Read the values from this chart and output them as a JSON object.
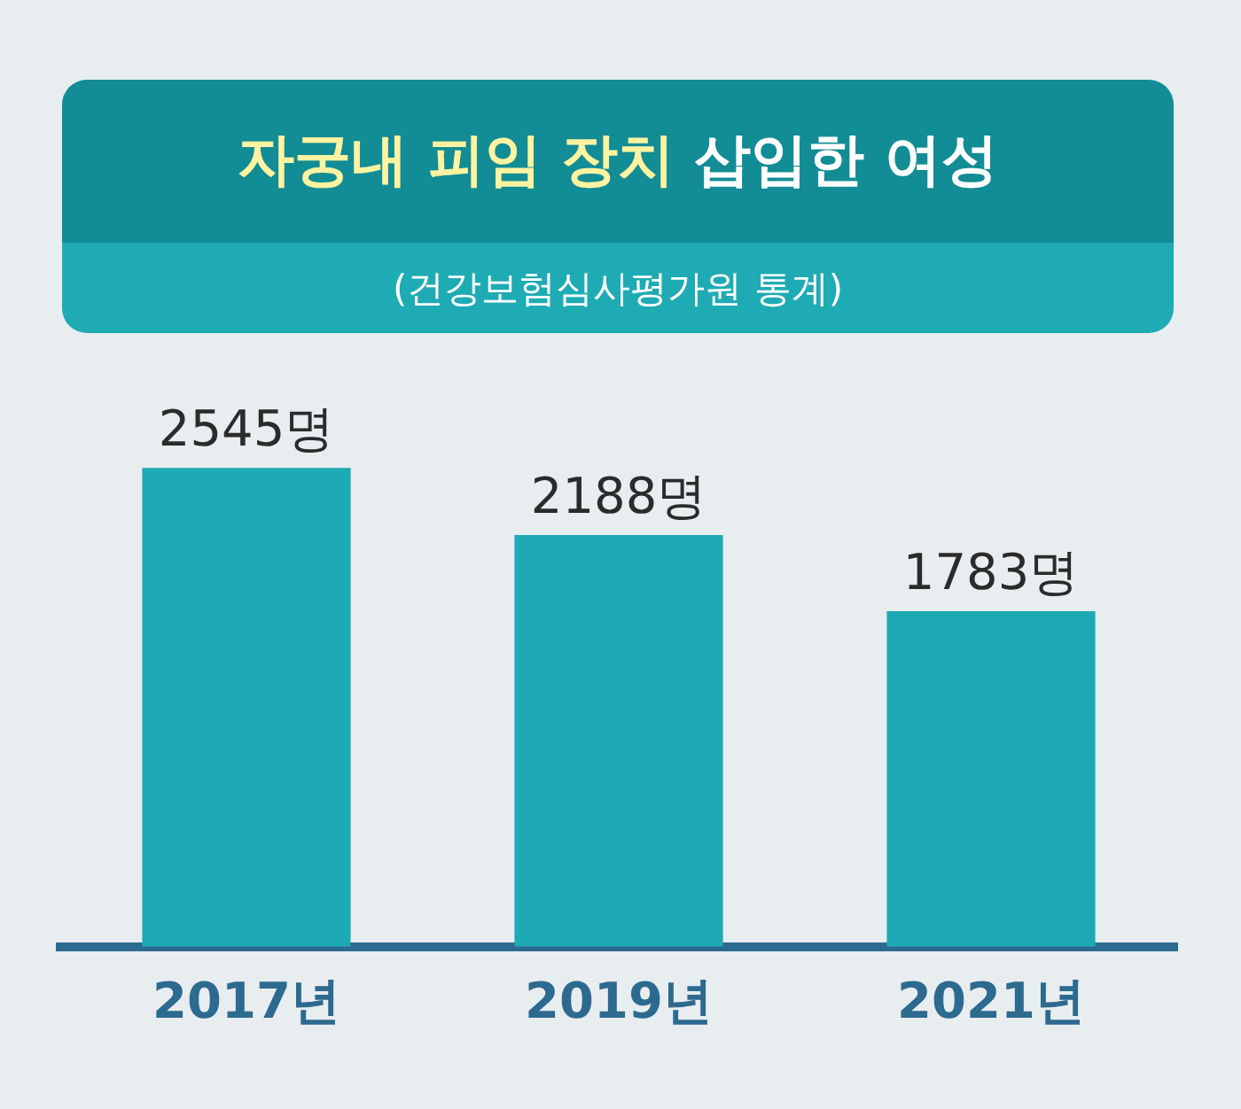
{
  "chart_data": {
    "type": "bar",
    "title": "자궁내 피임 장치 삽입한 여성",
    "subtitle": "(건강보험심사평가원 통계)",
    "categories": [
      "2017년",
      "2019년",
      "2021년"
    ],
    "values": [
      2545,
      2188,
      1783
    ],
    "value_labels": [
      "2545명",
      "2188명",
      "1783명"
    ],
    "color": "#1eaab5"
  }
}
